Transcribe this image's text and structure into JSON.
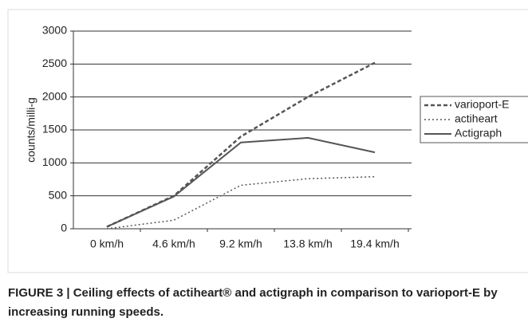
{
  "chart_data": {
    "type": "line",
    "y_label": "counts/milli-g",
    "categories": [
      "0 km/h",
      "4.6 km/h",
      "9.2 km/h",
      "13.8 km/h",
      "19.4 km/h"
    ],
    "series": [
      {
        "name": "varioport-E",
        "color": "#555555",
        "style": "dashed",
        "values": [
          30,
          500,
          1400,
          2000,
          2520
        ]
      },
      {
        "name": "actiheart",
        "color": "#555555",
        "style": "dotted",
        "values": [
          0,
          130,
          660,
          760,
          790
        ]
      },
      {
        "name": "Actigraph",
        "color": "#555555",
        "style": "solid",
        "values": [
          30,
          490,
          1310,
          1380,
          1160
        ]
      }
    ],
    "ylim": [
      0,
      3000
    ],
    "yticks": [
      0,
      500,
      1000,
      1500,
      2000,
      2500,
      3000
    ],
    "grid": true,
    "legend": "right",
    "caption": "FIGURE 3 | Ceiling effects of actiheart® and actigraph in comparison to varioport-E by increasing running speeds."
  }
}
